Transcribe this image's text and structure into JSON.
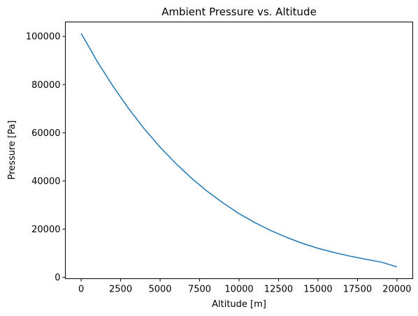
{
  "chart_data": {
    "type": "line",
    "title": "Ambient Pressure vs. Altitude",
    "xlabel": "Altitude [m]",
    "ylabel": "Pressure [Pa]",
    "xlim": [
      -1000,
      21000
    ],
    "ylim": [
      -600,
      106000
    ],
    "grid": false,
    "legend": "none",
    "x_ticks": [
      0,
      2500,
      5000,
      7500,
      10000,
      12500,
      15000,
      17500,
      20000
    ],
    "x_tick_labels": [
      "0",
      "2500",
      "5000",
      "7500",
      "10000",
      "12500",
      "15000",
      "17500",
      "20000"
    ],
    "y_ticks": [
      0,
      20000,
      40000,
      60000,
      80000,
      100000
    ],
    "y_tick_labels": [
      "0",
      "20000",
      "40000",
      "60000",
      "80000",
      "100000"
    ],
    "series": [
      {
        "color": "#1f77b4",
        "x": [
          0,
          1000,
          2000,
          3000,
          4000,
          5000,
          6000,
          7000,
          8000,
          9000,
          10000,
          11000,
          12000,
          13000,
          14000,
          15000,
          16000,
          17000,
          18000,
          19000,
          20000
        ],
        "y": [
          101300,
          89800,
          79500,
          70100,
          61600,
          54000,
          47200,
          41100,
          35600,
          30800,
          26400,
          22700,
          19400,
          16600,
          14100,
          12000,
          10300,
          8800,
          7500,
          6300,
          4300
        ]
      }
    ]
  }
}
